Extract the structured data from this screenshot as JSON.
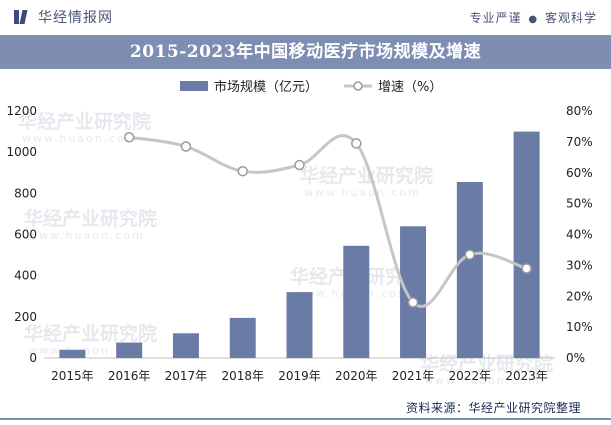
{
  "header": {
    "brand": "华经情报网",
    "slogan_left": "专业严谨",
    "slogan_dot": "●",
    "slogan_right": "客观科学"
  },
  "watermark": {
    "text": "华经产业研究院",
    "url": "www.huaon.com"
  },
  "source": {
    "label": "资料来源：",
    "value": "华经产业研究院整理"
  },
  "colors": {
    "bar": "#6a7ca5",
    "line": "#c6c6c6",
    "marker_fill": "#ffffff",
    "marker_stroke": "#9a9a9a",
    "title_band": "#7e8db2",
    "axis_text": "#222222"
  },
  "chart_data": {
    "type": "bar",
    "title": "2015-2023年中国移动医疗市场规模及增速",
    "categories": [
      "2015年",
      "2016年",
      "2017年",
      "2018年",
      "2019年",
      "2020年",
      "2021年",
      "2022年",
      "2023年"
    ],
    "series": [
      {
        "name": "市场规模（亿元）",
        "type": "bar",
        "axis": "left",
        "values": [
          40,
          75,
          120,
          195,
          320,
          545,
          640,
          855,
          1100
        ]
      },
      {
        "name": "增速（%）",
        "type": "line",
        "axis": "right",
        "values": [
          null,
          71.5,
          68.5,
          60.5,
          62.5,
          69.5,
          18.0,
          33.5,
          29.0
        ]
      }
    ],
    "y_left": {
      "min": 0,
      "max": 1200,
      "ticks": [
        "0",
        "200",
        "400",
        "600",
        "800",
        "1000",
        "1200"
      ]
    },
    "y_right": {
      "min": 0,
      "max": 80,
      "ticks": [
        "0%",
        "10%",
        "20%",
        "30%",
        "40%",
        "50%",
        "60%",
        "70%",
        "80%"
      ]
    },
    "legend_position": "top-center",
    "grid": false
  }
}
